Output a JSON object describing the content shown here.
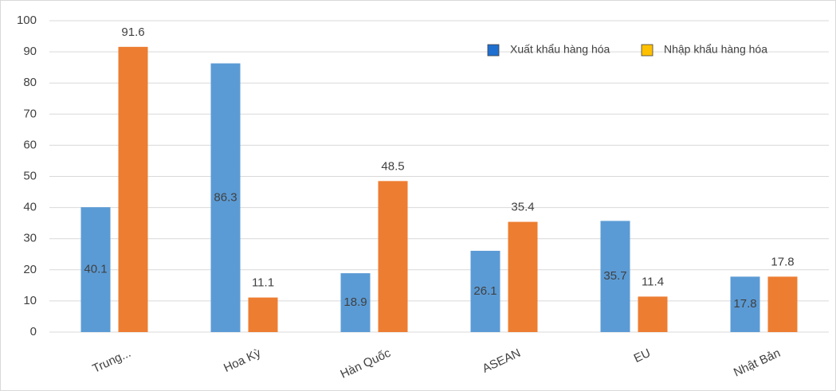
{
  "chart_data": {
    "type": "bar",
    "categories": [
      "Trung...",
      "Hoa Kỳ",
      "Hàn Quốc",
      "ASEAN",
      "EU",
      "Nhật Bản"
    ],
    "series": [
      {
        "name": "Xuất khẩu hàng hóa",
        "color": "#5b9bd5",
        "legend_color": "#1f6fd0",
        "label_position": "center",
        "values": [
          40.1,
          86.3,
          18.9,
          26.1,
          35.7,
          17.8
        ]
      },
      {
        "name": "Nhập khẩu hàng hóa",
        "color": "#ed7d31",
        "legend_color": "#ffc000",
        "label_position": "above",
        "values": [
          91.6,
          11.1,
          48.5,
          35.4,
          11.4,
          17.8
        ]
      }
    ],
    "ylim": [
      0,
      100
    ],
    "yticks": [
      0,
      10,
      20,
      30,
      40,
      50,
      60,
      70,
      80,
      90,
      100
    ],
    "grid": true,
    "legend": "top-right"
  }
}
